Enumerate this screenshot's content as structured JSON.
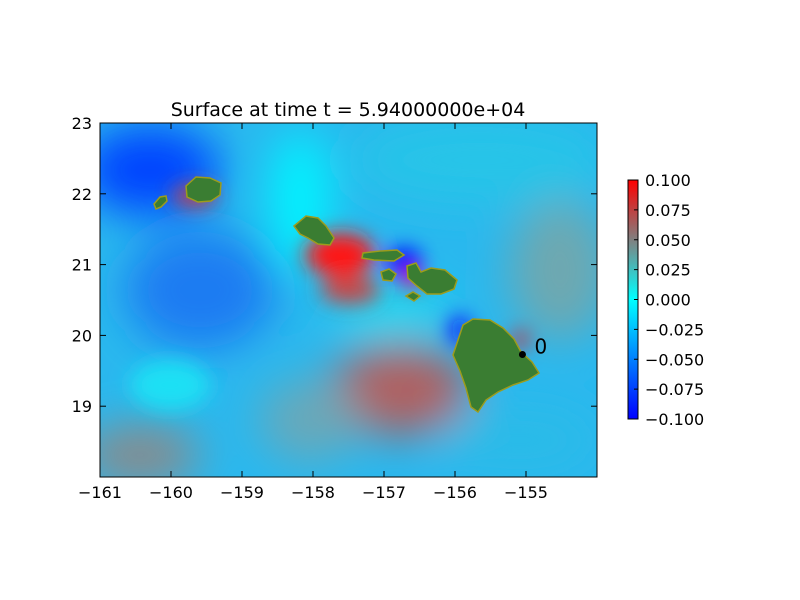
{
  "chart_data": {
    "type": "heatmap",
    "title": "Surface at time t = 5.94000000e+04",
    "xlabel": "",
    "ylabel": "",
    "xlim": [
      -161,
      -154.0
    ],
    "ylim": [
      18.0,
      23
    ],
    "x_ticks": [
      "−161",
      "−160",
      "−159",
      "−158",
      "−157",
      "−156",
      "−155"
    ],
    "x_tick_values": [
      -161,
      -160,
      -159,
      -158,
      -157,
      -156,
      -155
    ],
    "y_ticks": [
      "19",
      "20",
      "21",
      "22",
      "23"
    ],
    "y_tick_values": [
      19,
      20,
      21,
      22,
      23
    ],
    "grid": false,
    "colorbar": {
      "range": [
        -0.1,
        0.1
      ],
      "ticks": [
        "0.100",
        "0.075",
        "0.050",
        "0.025",
        "0.000",
        "−0.025",
        "−0.050",
        "−0.075",
        "−0.100"
      ],
      "tick_values": [
        0.1,
        0.075,
        0.05,
        0.025,
        0.0,
        -0.025,
        -0.05,
        -0.075,
        -0.1
      ],
      "colors": {
        "min": "#0000ff",
        "low": "#00ffff",
        "high": "#808080",
        "max": "#ff0000"
      }
    },
    "land_color": "#3a7d32",
    "land_edge_color": "#9c9c1c",
    "gauges": [
      {
        "label": "0",
        "lon": -155.05,
        "lat": 19.73
      }
    ]
  }
}
